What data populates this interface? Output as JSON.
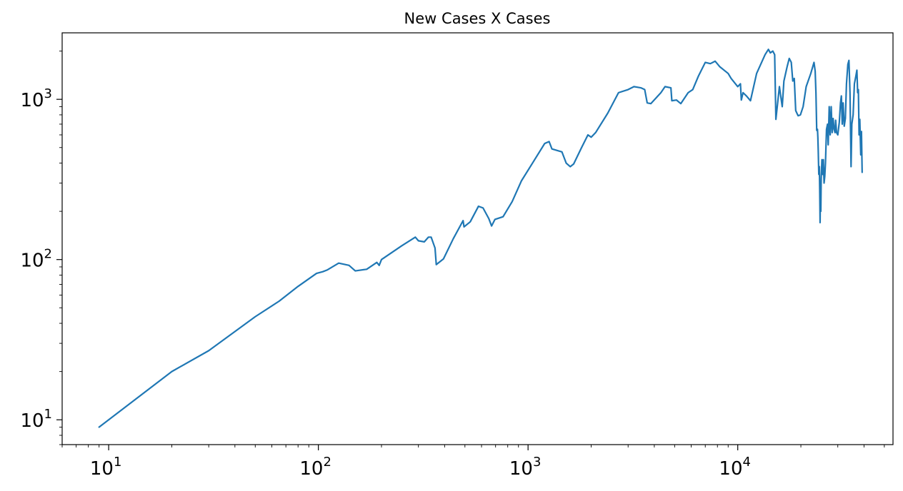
{
  "chart_data": {
    "type": "line",
    "title": "New Cases X Cases",
    "xlabel": "",
    "ylabel": "",
    "xscale": "log",
    "yscale": "log",
    "xlim": [
      6,
      55000
    ],
    "ylim": [
      7,
      2600
    ],
    "grid": false,
    "legend": "none",
    "x_ticks": [
      {
        "base": "10",
        "exp": "1",
        "value": 10
      },
      {
        "base": "10",
        "exp": "2",
        "value": 100
      },
      {
        "base": "10",
        "exp": "3",
        "value": 1000
      },
      {
        "base": "10",
        "exp": "4",
        "value": 10000
      }
    ],
    "y_ticks": [
      {
        "base": "10",
        "exp": "1",
        "value": 10
      },
      {
        "base": "10",
        "exp": "2",
        "value": 100
      },
      {
        "base": "10",
        "exp": "3",
        "value": 1000
      }
    ],
    "series": [
      {
        "color": "#1f77b4",
        "points": [
          [
            9,
            9
          ],
          [
            20,
            20
          ],
          [
            30,
            27
          ],
          [
            50,
            44
          ],
          [
            65,
            55
          ],
          [
            80,
            68
          ],
          [
            98,
            82
          ],
          [
            105,
            84
          ],
          [
            110,
            86
          ],
          [
            125,
            95
          ],
          [
            140,
            92
          ],
          [
            150,
            85
          ],
          [
            170,
            87
          ],
          [
            190,
            96
          ],
          [
            195,
            92
          ],
          [
            200,
            100
          ],
          [
            250,
            122
          ],
          [
            290,
            138
          ],
          [
            300,
            131
          ],
          [
            320,
            129
          ],
          [
            335,
            138
          ],
          [
            345,
            138
          ],
          [
            360,
            118
          ],
          [
            365,
            93
          ],
          [
            395,
            101
          ],
          [
            440,
            135
          ],
          [
            490,
            175
          ],
          [
            495,
            160
          ],
          [
            530,
            172
          ],
          [
            580,
            215
          ],
          [
            610,
            210
          ],
          [
            650,
            180
          ],
          [
            670,
            162
          ],
          [
            695,
            178
          ],
          [
            760,
            185
          ],
          [
            840,
            230
          ],
          [
            930,
            310
          ],
          [
            1050,
            400
          ],
          [
            1200,
            530
          ],
          [
            1260,
            545
          ],
          [
            1300,
            490
          ],
          [
            1450,
            470
          ],
          [
            1520,
            400
          ],
          [
            1590,
            380
          ],
          [
            1650,
            395
          ],
          [
            1800,
            500
          ],
          [
            1930,
            600
          ],
          [
            2000,
            580
          ],
          [
            2100,
            620
          ],
          [
            2400,
            820
          ],
          [
            2700,
            1100
          ],
          [
            3000,
            1150
          ],
          [
            3200,
            1200
          ],
          [
            3450,
            1180
          ],
          [
            3600,
            1150
          ],
          [
            3700,
            950
          ],
          [
            3850,
            940
          ],
          [
            4300,
            1100
          ],
          [
            4500,
            1200
          ],
          [
            4800,
            1180
          ],
          [
            4850,
            980
          ],
          [
            5100,
            990
          ],
          [
            5350,
            940
          ],
          [
            5800,
            1100
          ],
          [
            6100,
            1150
          ],
          [
            6500,
            1400
          ],
          [
            7000,
            1700
          ],
          [
            7400,
            1670
          ],
          [
            7800,
            1730
          ],
          [
            8200,
            1600
          ],
          [
            9000,
            1450
          ],
          [
            9300,
            1350
          ],
          [
            10000,
            1200
          ],
          [
            10300,
            1250
          ],
          [
            10400,
            990
          ],
          [
            10600,
            1100
          ],
          [
            11000,
            1050
          ],
          [
            11500,
            980
          ],
          [
            12300,
            1450
          ],
          [
            13500,
            1900
          ],
          [
            14000,
            2050
          ],
          [
            14300,
            1950
          ],
          [
            14700,
            2000
          ],
          [
            15000,
            1900
          ],
          [
            15200,
            750
          ],
          [
            15800,
            1200
          ],
          [
            16300,
            900
          ],
          [
            16600,
            1300
          ],
          [
            17200,
            1600
          ],
          [
            17600,
            1800
          ],
          [
            18000,
            1700
          ],
          [
            18300,
            1300
          ],
          [
            18600,
            1350
          ],
          [
            18900,
            850
          ],
          [
            19400,
            790
          ],
          [
            19900,
            800
          ],
          [
            20500,
            900
          ],
          [
            21200,
            1200
          ],
          [
            22300,
            1450
          ],
          [
            23100,
            1700
          ],
          [
            23400,
            1500
          ],
          [
            23600,
            1100
          ],
          [
            23800,
            640
          ],
          [
            24000,
            650
          ],
          [
            24100,
            580
          ],
          [
            24200,
            480
          ],
          [
            24350,
            340
          ],
          [
            24500,
            380
          ],
          [
            24600,
            270
          ],
          [
            24700,
            170
          ],
          [
            24800,
            300
          ],
          [
            24900,
            200
          ],
          [
            25000,
            320
          ],
          [
            25200,
            420
          ],
          [
            25400,
            340
          ],
          [
            25600,
            420
          ],
          [
            25800,
            300
          ],
          [
            26000,
            330
          ],
          [
            26200,
            400
          ],
          [
            26500,
            650
          ],
          [
            26800,
            700
          ],
          [
            27000,
            520
          ],
          [
            27300,
            900
          ],
          [
            27600,
            600
          ],
          [
            27900,
            900
          ],
          [
            28200,
            620
          ],
          [
            28500,
            760
          ],
          [
            28800,
            650
          ],
          [
            29100,
            620
          ],
          [
            29300,
            740
          ],
          [
            29600,
            620
          ],
          [
            30000,
            600
          ],
          [
            30500,
            720
          ],
          [
            30900,
            950
          ],
          [
            31200,
            1050
          ],
          [
            31500,
            700
          ],
          [
            31800,
            950
          ],
          [
            32200,
            680
          ],
          [
            32600,
            760
          ],
          [
            33000,
            1250
          ],
          [
            33500,
            1650
          ],
          [
            33900,
            1750
          ],
          [
            34300,
            1100
          ],
          [
            34700,
            380
          ],
          [
            35000,
            700
          ],
          [
            35500,
            800
          ],
          [
            36000,
            1250
          ],
          [
            36600,
            1400
          ],
          [
            37000,
            1520
          ],
          [
            37300,
            1100
          ],
          [
            37600,
            1150
          ],
          [
            37900,
            600
          ],
          [
            38200,
            750
          ],
          [
            38600,
            450
          ],
          [
            38900,
            630
          ],
          [
            39200,
            350
          ]
        ]
      }
    ]
  }
}
